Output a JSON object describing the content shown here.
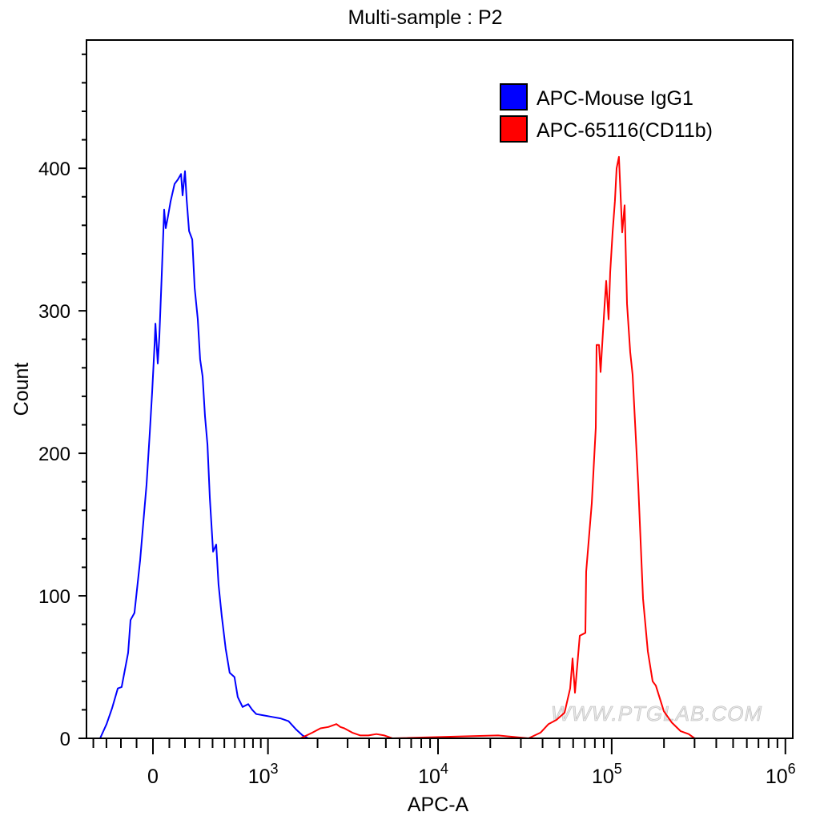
{
  "chart_data": {
    "type": "line",
    "title": "Multi-sample : P2",
    "xlabel": "APC-A",
    "ylabel": "Count",
    "x_scale": "biexponential",
    "xlim": [
      -460,
      1000000
    ],
    "ylim": [
      0,
      490
    ],
    "x_ticks": [
      {
        "value": 0,
        "base": "0",
        "exp": ""
      },
      {
        "value": 1000,
        "base": "10",
        "exp": "3"
      },
      {
        "value": 10000,
        "base": "10",
        "exp": "4"
      },
      {
        "value": 100000,
        "base": "10",
        "exp": "5"
      },
      {
        "value": 1000000,
        "base": "10",
        "exp": "6"
      }
    ],
    "y_ticks": [
      0,
      100,
      200,
      300,
      400
    ],
    "grid": false,
    "legend_position": "top-right",
    "watermark": "WWW.PTGLAB.COM",
    "series": [
      {
        "name": "APC-Mouse IgG1",
        "color": "#0000ff",
        "x": [
          -347,
          -299,
          -260,
          -221,
          -195,
          -153,
          -138,
          -113,
          -78,
          -53,
          -39,
          -19,
          -5,
          10,
          15,
          29,
          39,
          54,
          68,
          78,
          93,
          108,
          133,
          153,
          174,
          184,
          200,
          211,
          227,
          249,
          266,
          288,
          305,
          323,
          341,
          360,
          378,
          404,
          430,
          449,
          477,
          512,
          549,
          596,
          629,
          680,
          744,
          791,
          841,
          948,
          1065,
          1196,
          1340,
          1495,
          1630,
          1760
        ],
        "y": [
          0,
          10,
          21,
          35,
          36,
          60,
          83,
          88,
          125,
          159,
          178,
          215,
          243,
          277,
          291,
          263,
          282,
          327,
          371,
          358,
          367,
          377,
          389,
          392,
          396,
          381,
          398,
          378,
          356,
          350,
          316,
          294,
          266,
          254,
          226,
          206,
          169,
          131,
          136,
          108,
          86,
          63,
          46,
          43,
          29,
          22,
          24,
          20,
          17,
          16,
          15,
          14,
          12,
          6,
          2,
          0
        ]
      },
      {
        "name": "APC-65116(CD11b)",
        "color": "#ff0000",
        "x": [
          1581,
          1864,
          2080,
          2317,
          2582,
          2720,
          2870,
          3194,
          3556,
          3962,
          4405,
          4904,
          5452,
          22170,
          33200,
          38940,
          43280,
          48120,
          53510,
          57670,
          59550,
          61420,
          65490,
          70520,
          71300,
          76780,
          80960,
          81850,
          84500,
          86300,
          88130,
          91000,
          92930,
          95950,
          98070,
          101200,
          104400,
          106700,
          110100,
          114900,
          118700,
          122500,
          127800,
          132000,
          142100,
          151500,
          161500,
          172000,
          179600,
          199700,
          222100,
          249500,
          277600,
          300000
        ],
        "y": [
          0,
          4,
          7,
          8,
          10,
          8,
          7,
          4,
          2,
          2,
          3,
          2,
          0,
          2,
          0,
          4,
          10,
          13,
          18,
          35,
          56,
          32,
          72,
          74,
          117,
          165,
          218,
          276,
          276,
          257,
          276,
          304,
          321,
          294,
          327,
          355,
          377,
          400,
          408,
          355,
          374,
          305,
          271,
          255,
          178,
          98,
          61,
          40,
          37,
          19,
          11,
          5,
          3,
          0
        ]
      }
    ]
  }
}
